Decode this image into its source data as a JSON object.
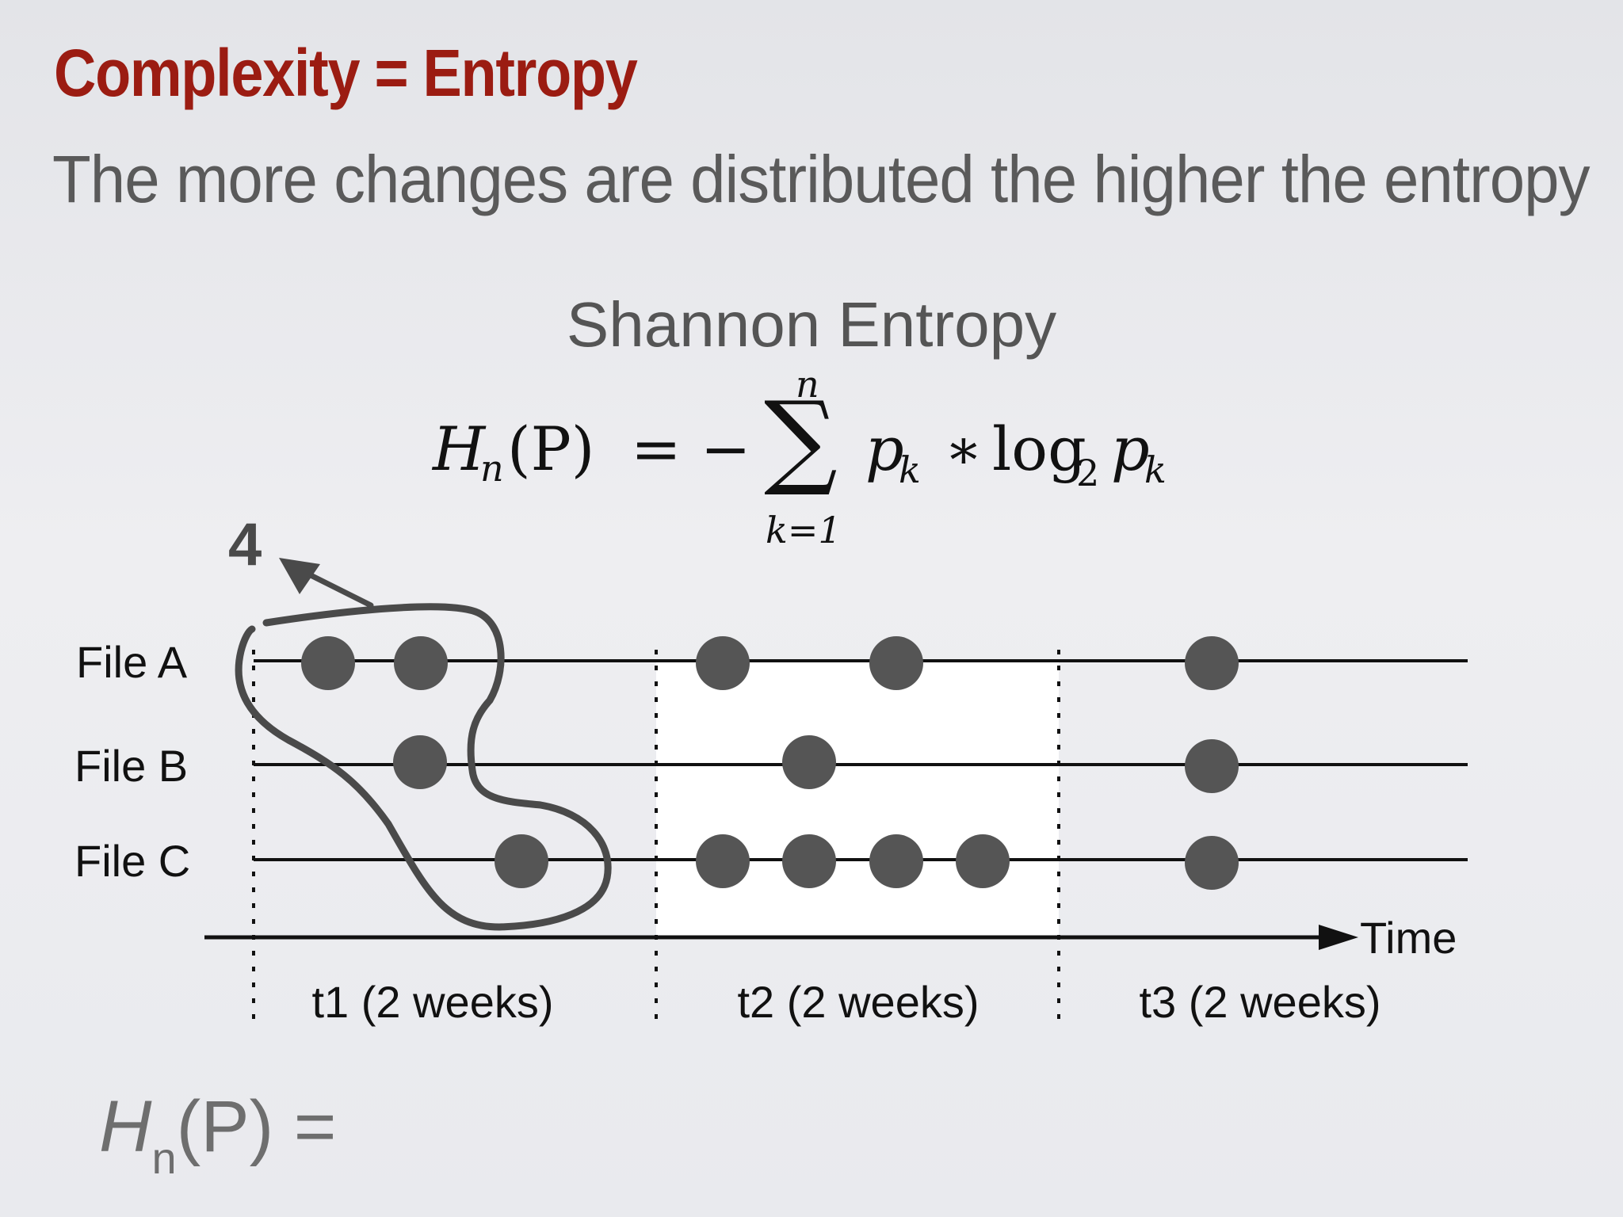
{
  "slide": {
    "title": "Complexity = Entropy",
    "subtitle": "The more changes are distributed the higher the entropy",
    "heading": "Shannon Entropy"
  },
  "formula": {
    "lhs": "H",
    "lhs_sub": "n",
    "lhs_arg": "(P)",
    "equals_minus": "= −",
    "sigma": "∑",
    "sum_upper": "n",
    "sum_lower": "k=1",
    "term": "p",
    "term_sub": "k",
    "times": "∗",
    "log": "log",
    "log_base": "2",
    "term2": "p",
    "term2_sub": "k"
  },
  "diagram": {
    "annotation_count": "4",
    "files": [
      "File A",
      "File B",
      "File C"
    ],
    "axis_label": "Time",
    "periods": [
      "t1 (2 weeks)",
      "t2 (2 weeks)",
      "t3 (2 weeks)"
    ],
    "highlighted_period": "t2 (2 weeks)",
    "changes": {
      "t1": {
        "File A": 2,
        "File B": 1,
        "File C": 1
      },
      "t2": {
        "File A": 2,
        "File B": 1,
        "File C": 4
      },
      "t3": {
        "File A": 1,
        "File B": 1,
        "File C": 1
      }
    }
  },
  "bottom": {
    "lhs": "H",
    "sub": "n",
    "rest": "(P) ="
  },
  "colors": {
    "title": "#9b1c12",
    "dot": "#555555",
    "highlight": "#ffffff"
  }
}
